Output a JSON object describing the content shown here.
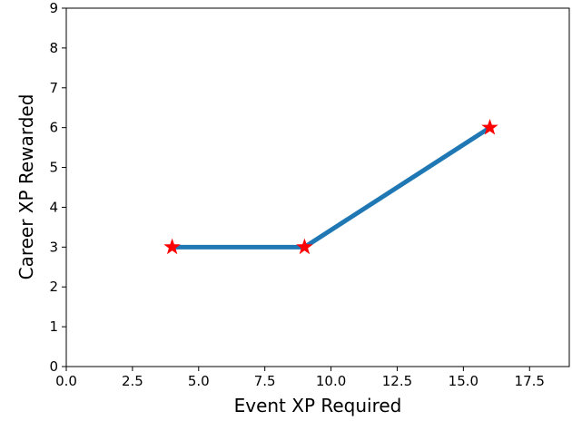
{
  "chart_data": {
    "type": "line",
    "title": "",
    "xlabel": "Event XP Required",
    "ylabel": "Career XP Rewarded",
    "xlim": [
      0,
      19
    ],
    "ylim": [
      0,
      9
    ],
    "x_ticks": [
      "0.0",
      "2.5",
      "5.0",
      "7.5",
      "10.0",
      "12.5",
      "15.0",
      "17.5"
    ],
    "y_ticks": [
      "0",
      "1",
      "2",
      "3",
      "4",
      "5",
      "6",
      "7",
      "8",
      "9"
    ],
    "grid": false,
    "legend": "none",
    "series": [
      {
        "x": [
          4,
          9,
          16
        ],
        "y": [
          3,
          3,
          6
        ],
        "line_color": "#1f77b4",
        "marker": "star",
        "marker_color": "#ff0000"
      }
    ]
  }
}
